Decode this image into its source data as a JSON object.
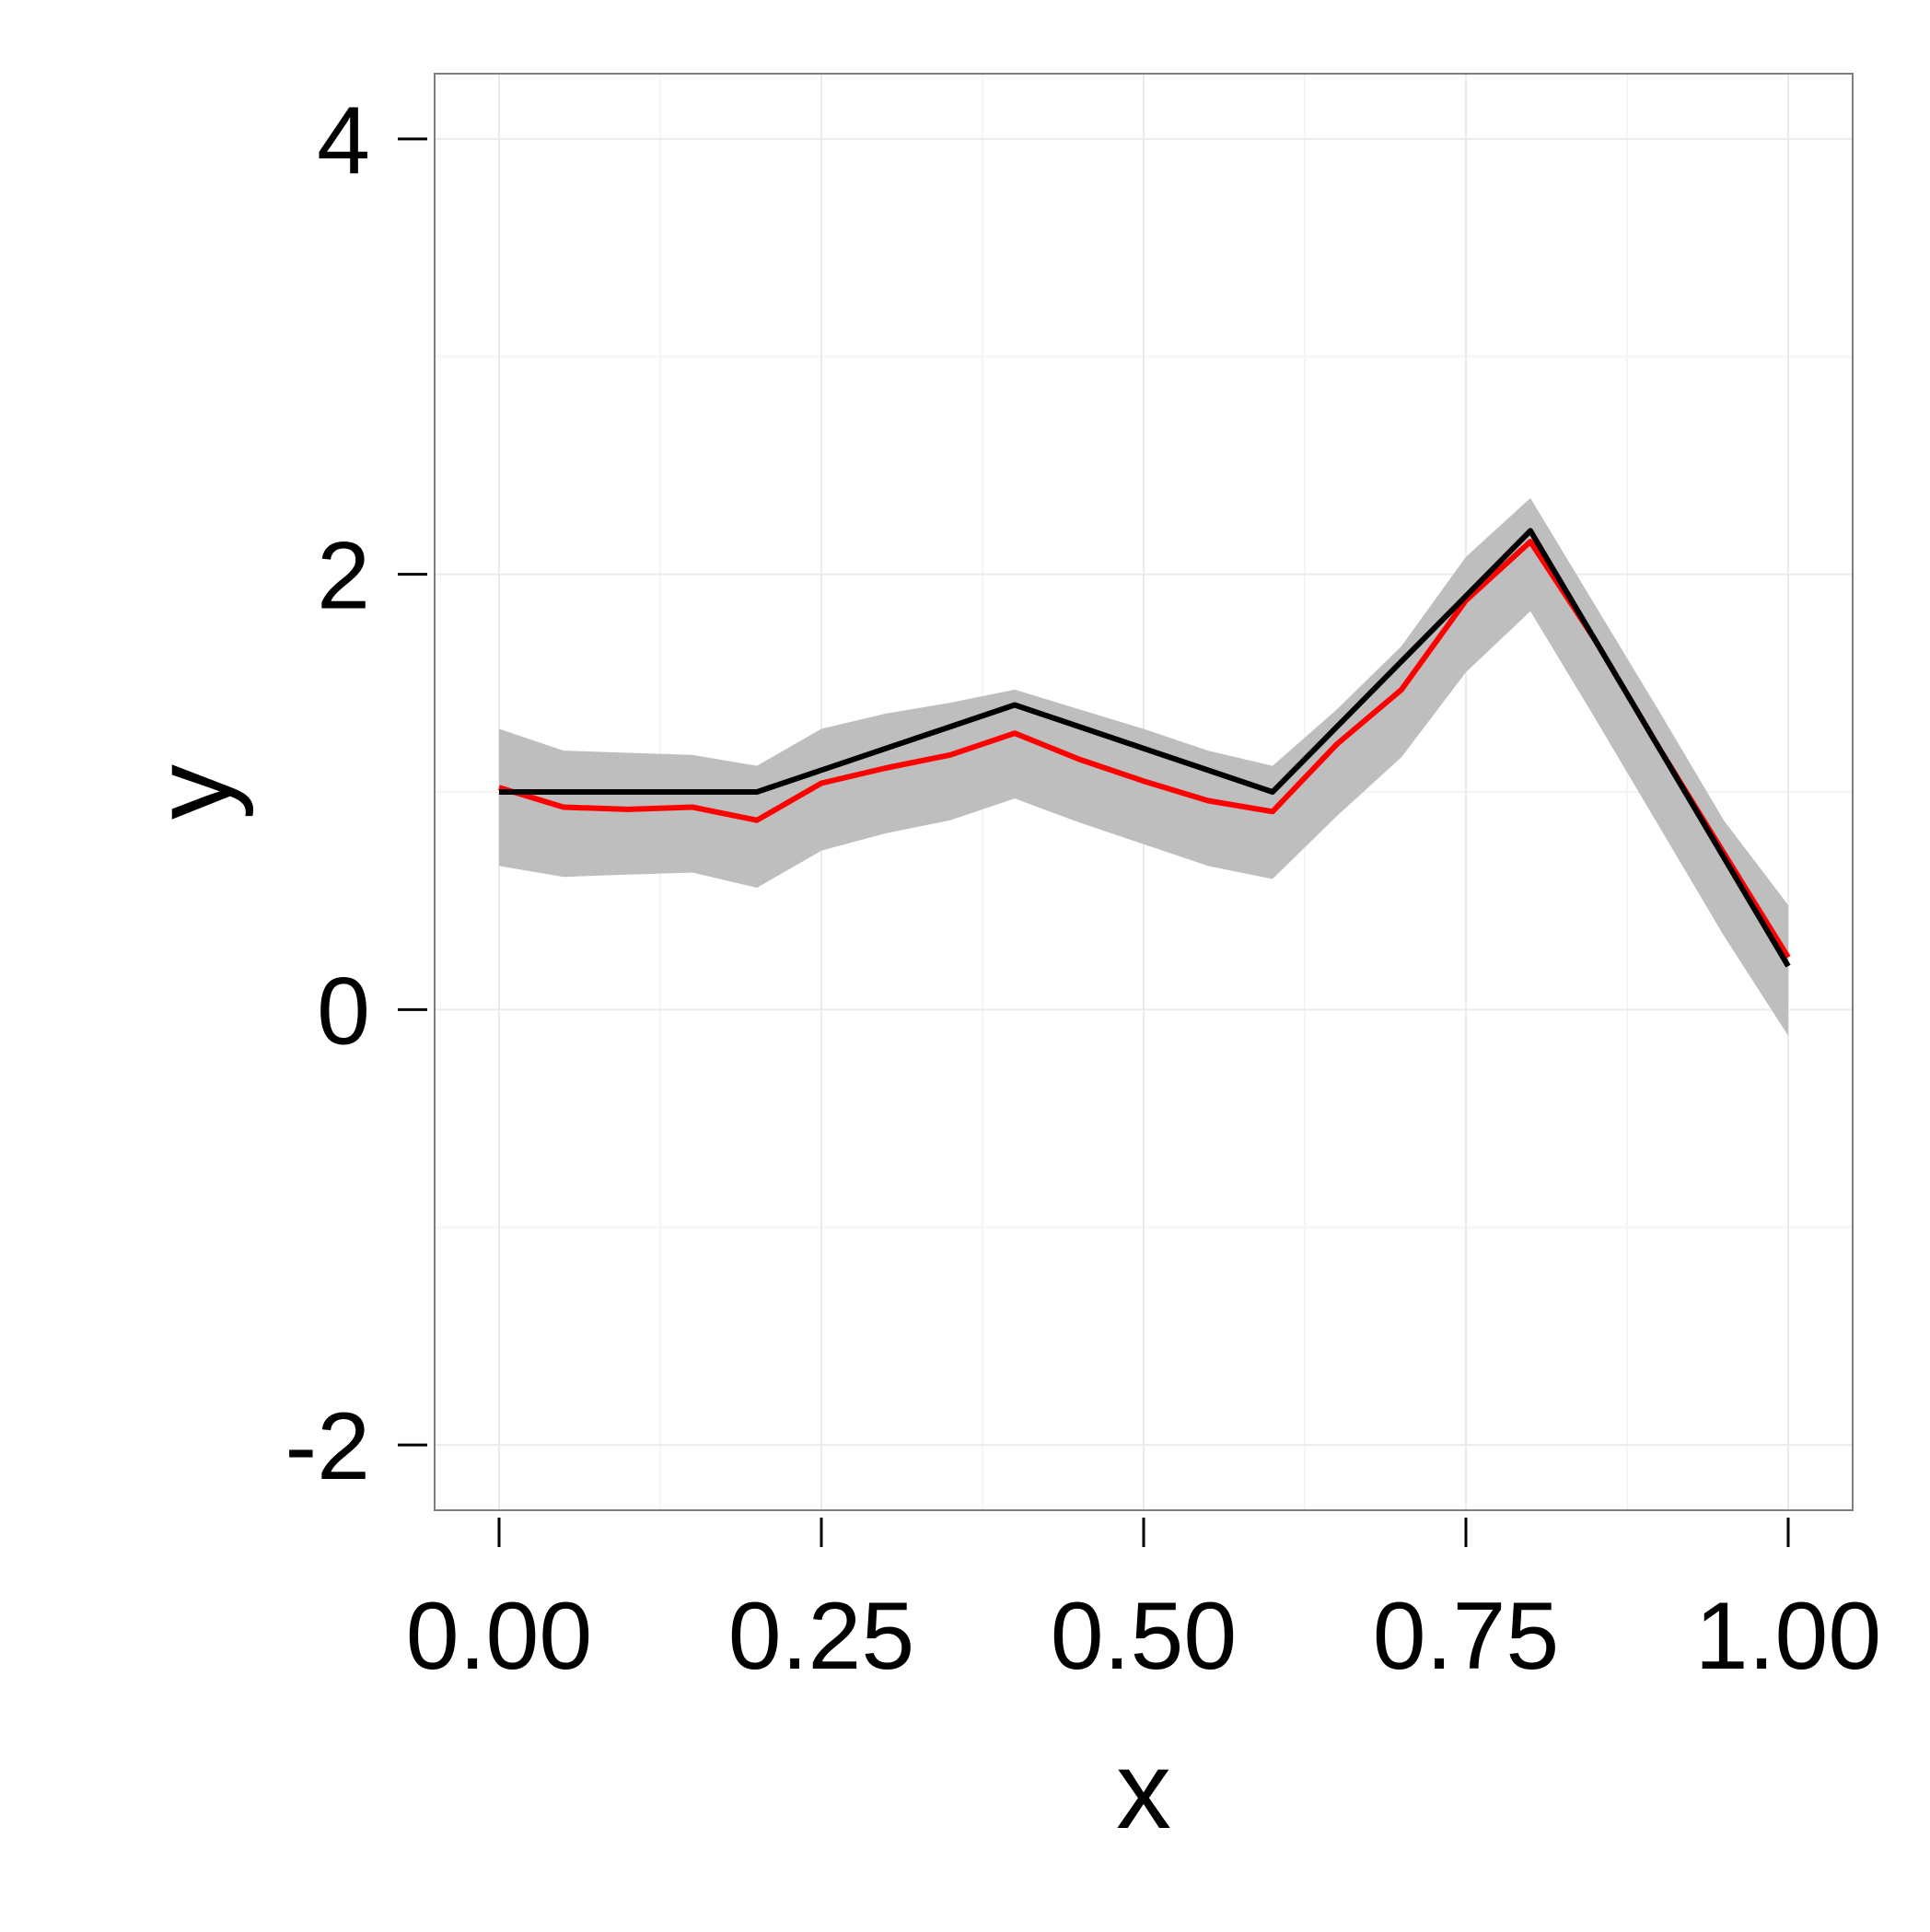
{
  "chart_data": {
    "type": "line",
    "title": "",
    "xlabel": "x",
    "ylabel": "y",
    "xlim": [
      -0.05,
      1.05
    ],
    "ylim": [
      -2.3,
      4.3
    ],
    "x_ticks": [
      0.0,
      0.25,
      0.5,
      0.75,
      1.0
    ],
    "x_tick_labels": [
      "0.00",
      "0.25",
      "0.50",
      "0.75",
      "1.00"
    ],
    "y_ticks": [
      -2,
      0,
      2,
      4
    ],
    "y_tick_labels": [
      "-2",
      "0",
      "2",
      "4"
    ],
    "grid": true,
    "legend": "none",
    "band": {
      "x": [
        0.0,
        0.05,
        0.1,
        0.15,
        0.2,
        0.25,
        0.3,
        0.35,
        0.4,
        0.45,
        0.5,
        0.55,
        0.6,
        0.65,
        0.7,
        0.75,
        0.8,
        0.85,
        0.9,
        0.95,
        1.0
      ],
      "lower": [
        0.66,
        0.61,
        0.62,
        0.63,
        0.56,
        0.73,
        0.81,
        0.87,
        0.97,
        0.86,
        0.76,
        0.66,
        0.6,
        0.89,
        1.16,
        1.55,
        1.83,
        1.34,
        0.84,
        0.34,
        -0.12
      ],
      "upper": [
        1.29,
        1.19,
        1.18,
        1.17,
        1.12,
        1.29,
        1.36,
        1.41,
        1.47,
        1.38,
        1.29,
        1.19,
        1.12,
        1.38,
        1.67,
        2.08,
        2.35,
        1.86,
        1.37,
        0.87,
        0.48
      ],
      "color": "#bebebe"
    },
    "series": [
      {
        "color": "#000000",
        "x": [
          0.0,
          0.2,
          0.4,
          0.6,
          0.8,
          1.0
        ],
        "y": [
          1.0,
          1.0,
          1.4,
          1.0,
          2.2,
          0.2
        ]
      },
      {
        "color": "#ff0000",
        "x": [
          0.0,
          0.05,
          0.1,
          0.15,
          0.2,
          0.25,
          0.3,
          0.35,
          0.4,
          0.45,
          0.5,
          0.55,
          0.6,
          0.65,
          0.7,
          0.75,
          0.8,
          0.85,
          0.9,
          0.95,
          1.0
        ],
        "y": [
          1.02,
          0.93,
          0.92,
          0.93,
          0.87,
          1.04,
          1.11,
          1.17,
          1.27,
          1.15,
          1.05,
          0.96,
          0.91,
          1.22,
          1.47,
          1.88,
          2.15,
          1.7,
          1.2,
          0.72,
          0.24
        ]
      }
    ],
    "colors": {
      "panel_border": "#7f7f7f",
      "grid_major": "#ebebeb",
      "grid_minor": "#f5f5f5",
      "axis_ticks": "#000000"
    }
  }
}
